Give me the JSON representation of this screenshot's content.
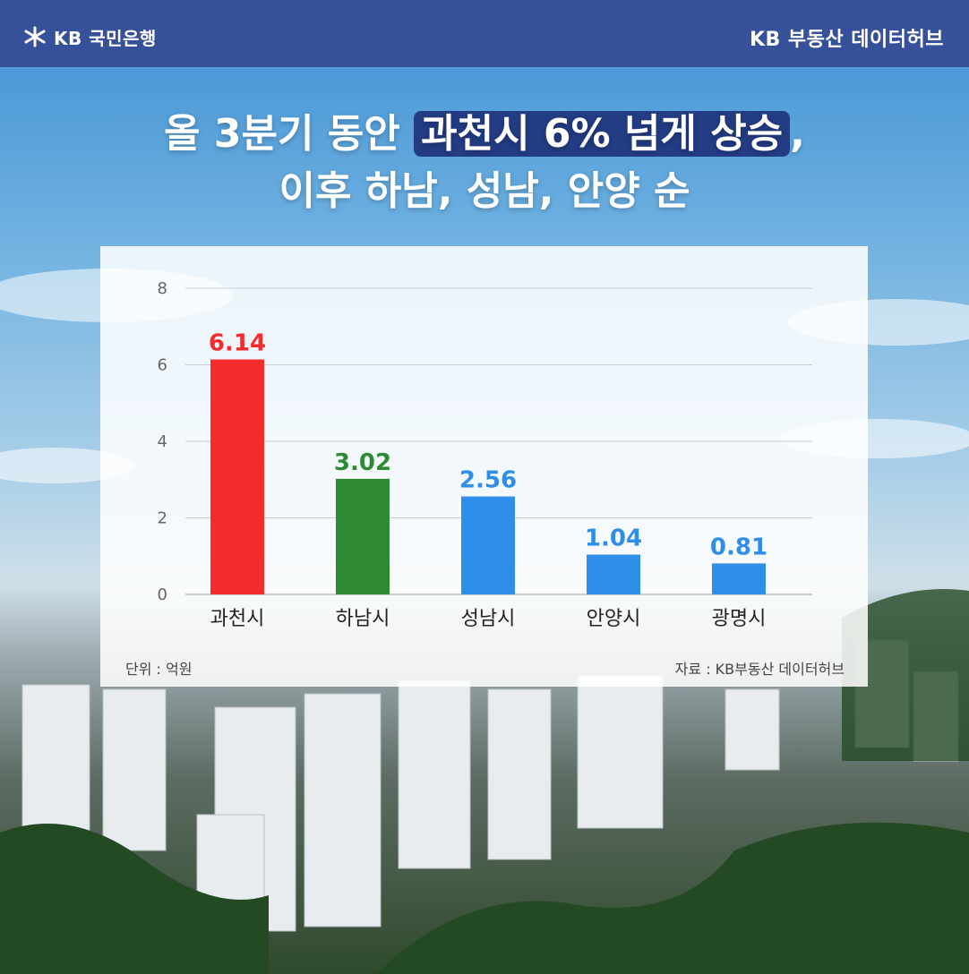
{
  "header": {
    "logo_text": "KB 국민은행",
    "hub_text": "KB 부동산  데이터허브",
    "logo_icon": "kb-star-icon"
  },
  "title": {
    "line1_prefix": "올 3분기 동안 ",
    "line1_highlight": "과천시 6% 넘게 상승",
    "line1_suffix": ",",
    "line2": "이후 하남, 성남, 안양 순"
  },
  "chart_data": {
    "type": "bar",
    "categories": [
      "과천시",
      "하남시",
      "성남시",
      "안양시",
      "광명시"
    ],
    "values": [
      6.14,
      3.02,
      2.56,
      1.04,
      0.81
    ],
    "value_labels": [
      "6.14",
      "3.02",
      "2.56",
      "1.04",
      "0.81"
    ],
    "colors": [
      "#f42c2c",
      "#2f8a34",
      "#2f8ee8",
      "#2f8ee8",
      "#2f8ee8"
    ],
    "yticks": [
      0,
      2,
      4,
      6,
      8
    ],
    "ylim": [
      0,
      8
    ],
    "grid": true,
    "unit_label": "단위 : 억원",
    "source_label": "자료 : KB부동산 데이터허브"
  }
}
